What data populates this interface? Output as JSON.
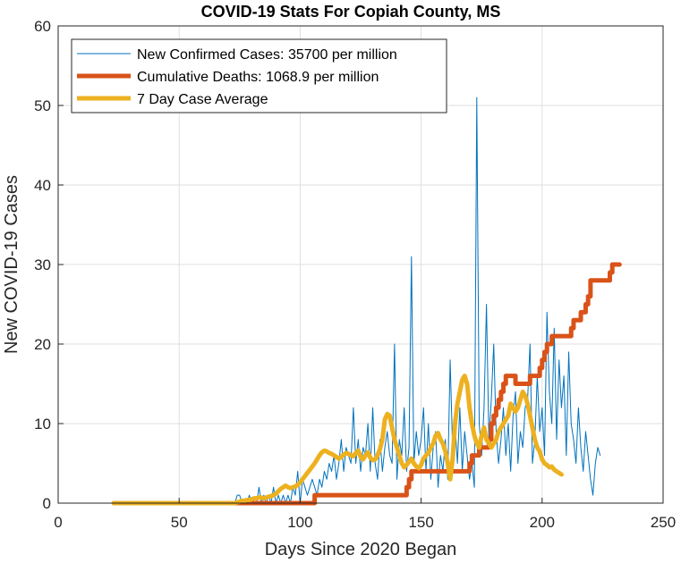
{
  "chart_data": {
    "type": "line",
    "title": "COVID-19 Stats For Copiah County, MS",
    "xlabel": "Days Since 2020 Began",
    "ylabel": "New COVID-19 Cases",
    "xlim": [
      0,
      250
    ],
    "ylim": [
      0,
      60
    ],
    "xticks": [
      "0",
      "50",
      "100",
      "150",
      "200",
      "250"
    ],
    "yticks": [
      "0",
      "10",
      "20",
      "30",
      "40",
      "50",
      "60"
    ],
    "grid": true,
    "legend_position": "top-left",
    "series": [
      {
        "name": "New Confirmed Cases: 35700 per million",
        "color": "#0072BD",
        "x_start": 23,
        "values": [
          0,
          0,
          0,
          0,
          0,
          0,
          0,
          0,
          0,
          0,
          0,
          0,
          0,
          0,
          0,
          0,
          0,
          0,
          0,
          0,
          0,
          0,
          0,
          0,
          0,
          0,
          0,
          0,
          0,
          0,
          0,
          0,
          0,
          0,
          0,
          0,
          0,
          0,
          0,
          0,
          0,
          0,
          0,
          0,
          0,
          0,
          0,
          0,
          0,
          0,
          0,
          1,
          1,
          0,
          0,
          0,
          1,
          0,
          0,
          0,
          2,
          0,
          1,
          0,
          1,
          0,
          2,
          0,
          1,
          0,
          1,
          0,
          1,
          0,
          2,
          1,
          4,
          0,
          3,
          2,
          1,
          2,
          3,
          2,
          1,
          3,
          2,
          4,
          3,
          5,
          4,
          6,
          3,
          5,
          8,
          4,
          7,
          6,
          5,
          12,
          5,
          8,
          4,
          7,
          6,
          10,
          4,
          12,
          5,
          3,
          8,
          4,
          7,
          9,
          6,
          5,
          20,
          3,
          8,
          6,
          12,
          4,
          7,
          31,
          5,
          9,
          6,
          8,
          12,
          4,
          10,
          3,
          7,
          9,
          2,
          6,
          4,
          8,
          3,
          18,
          7,
          10,
          5,
          12,
          4,
          9,
          6,
          3,
          5,
          2,
          51,
          10,
          6,
          12,
          25,
          8,
          13,
          20,
          9,
          5,
          8,
          12,
          6,
          10,
          4,
          11,
          14,
          5,
          9,
          7,
          12,
          13,
          20,
          5,
          8,
          16,
          9,
          12,
          6,
          24,
          14,
          10,
          22,
          8,
          18,
          12,
          16,
          6,
          19,
          10,
          8,
          5,
          12,
          7,
          4,
          9,
          6,
          3,
          1,
          5,
          7,
          6
        ]
      },
      {
        "name": "Cumulative Deaths: 1068.9 per million",
        "color": "#D95319",
        "x_start": 23,
        "values": [
          0,
          0,
          0,
          0,
          0,
          0,
          0,
          0,
          0,
          0,
          0,
          0,
          0,
          0,
          0,
          0,
          0,
          0,
          0,
          0,
          0,
          0,
          0,
          0,
          0,
          0,
          0,
          0,
          0,
          0,
          0,
          0,
          0,
          0,
          0,
          0,
          0,
          0,
          0,
          0,
          0,
          0,
          0,
          0,
          0,
          0,
          0,
          0,
          0,
          0,
          0,
          0,
          0,
          0,
          0,
          0,
          0,
          0,
          0,
          0,
          0,
          0,
          0,
          0,
          0,
          0,
          0,
          0,
          0,
          0,
          0,
          0,
          0,
          0,
          0,
          0,
          0,
          0,
          0,
          0,
          0,
          0,
          0,
          1,
          1,
          1,
          1,
          1,
          1,
          1,
          1,
          1,
          1,
          1,
          1,
          1,
          1,
          1,
          1,
          1,
          1,
          1,
          1,
          1,
          1,
          1,
          1,
          1,
          1,
          1,
          1,
          1,
          1,
          1,
          1,
          1,
          1,
          1,
          1,
          1,
          1,
          2,
          3,
          4,
          4,
          4,
          4,
          4,
          4,
          4,
          4,
          4,
          4,
          4,
          4,
          4,
          4,
          4,
          4,
          4,
          4,
          4,
          4,
          4,
          4,
          4,
          4,
          5,
          6,
          6,
          6,
          7,
          7,
          7,
          7,
          8,
          10,
          11,
          12,
          13,
          14,
          15,
          16,
          16,
          16,
          16,
          15,
          15,
          15,
          15,
          15,
          15,
          16,
          16,
          16,
          16,
          17,
          18,
          19,
          20,
          20,
          21,
          21,
          21,
          21,
          21,
          21,
          21,
          21,
          22,
          23,
          23,
          23,
          24,
          24,
          25,
          26,
          28,
          28,
          28,
          28,
          28,
          28,
          28,
          28,
          29,
          30,
          30,
          30,
          30
        ]
      },
      {
        "name": "7 Day Case Average",
        "color": "#EDB120",
        "x_start": 23,
        "values": [
          0,
          0,
          0,
          0,
          0,
          0,
          0,
          0,
          0,
          0,
          0,
          0,
          0,
          0,
          0,
          0,
          0,
          0,
          0,
          0,
          0,
          0,
          0,
          0,
          0,
          0,
          0,
          0,
          0,
          0,
          0,
          0,
          0,
          0,
          0,
          0,
          0,
          0,
          0,
          0,
          0,
          0,
          0,
          0,
          0,
          0,
          0,
          0,
          0,
          0,
          0,
          0.1,
          0.2,
          0.3,
          0.3,
          0.4,
          0.4,
          0.5,
          0.6,
          0.6,
          0.7,
          0.7,
          0.6,
          0.7,
          0.8,
          0.9,
          1.0,
          1.2,
          1.5,
          1.8,
          2.0,
          2.2,
          2.0,
          1.9,
          2.0,
          2.1,
          2.3,
          2.6,
          3.0,
          3.4,
          3.8,
          4.2,
          4.6,
          5.0,
          5.5,
          6.0,
          6.4,
          6.6,
          6.5,
          6.3,
          6.2,
          6.0,
          5.8,
          5.6,
          5.8,
          6.1,
          6.3,
          6.2,
          6.0,
          5.9,
          6.3,
          6.6,
          5.8,
          5.5,
          6.0,
          6.4,
          5.7,
          5.4,
          5.5,
          6.0,
          6.8,
          8.0,
          10.5,
          11.2,
          11.0,
          9.5,
          8.0,
          7.0,
          6.0,
          5.0,
          4.5,
          4.8,
          5.2,
          5.6,
          5.0,
          4.6,
          4.4,
          4.8,
          5.6,
          6.0,
          6.3,
          7.0,
          7.5,
          8.5,
          8.8,
          8.0,
          7.5,
          6.5,
          5.0,
          3.0,
          5.5,
          10.0,
          12.5,
          14.0,
          15.5,
          16.0,
          15.0,
          12.0,
          10.0,
          8.5,
          7.5,
          7.0,
          8.5,
          9.5,
          8.0,
          7.5,
          7.0,
          7.5,
          8.0,
          9.0,
          9.5,
          10.0,
          10.5,
          11.0,
          12.5,
          12.0,
          11.5,
          12.0,
          13.0,
          14.0,
          13.5,
          12.5,
          11.0,
          9.5,
          8.0,
          7.0,
          6.5,
          5.5,
          5.0,
          4.8,
          4.5,
          4.6,
          4.2,
          4.0,
          3.8,
          3.6
        ]
      }
    ]
  }
}
